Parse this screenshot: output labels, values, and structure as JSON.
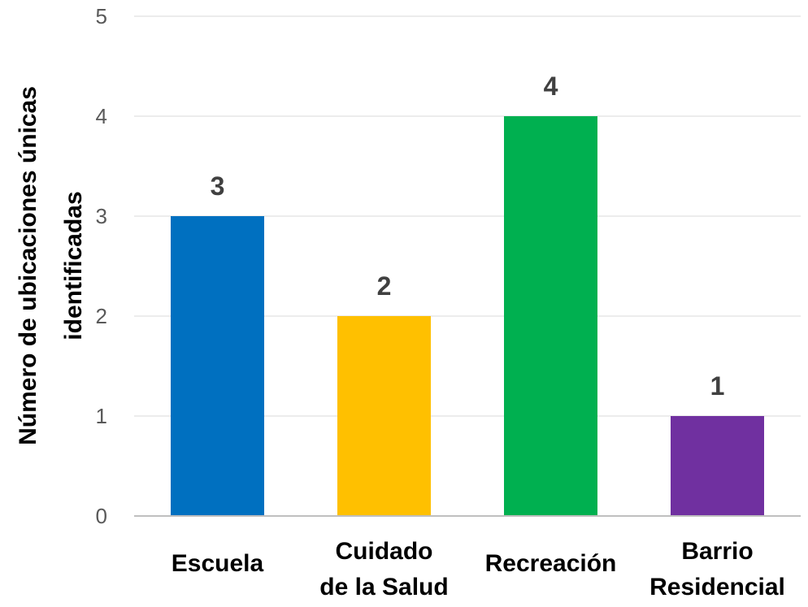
{
  "chart_data": {
    "type": "bar",
    "categories": [
      [
        "Escuela"
      ],
      [
        "Cuidado",
        "de la Salud"
      ],
      [
        "Recreación"
      ],
      [
        "Barrio",
        "Residencial"
      ]
    ],
    "values": [
      3,
      2,
      4,
      1
    ],
    "data_labels": [
      "3",
      "2",
      "4",
      "1"
    ],
    "bar_colors": [
      "#0070C0",
      "#FFC000",
      "#00B050",
      "#7030A0"
    ],
    "title": "",
    "xlabel": "",
    "ylabel": [
      "Número de ubicaciones únicas",
      "identificadas"
    ],
    "ylim": [
      0,
      5
    ],
    "yticks": [
      "0",
      "1",
      "2",
      "3",
      "4",
      "5"
    ],
    "grid": true,
    "legend": "none"
  }
}
